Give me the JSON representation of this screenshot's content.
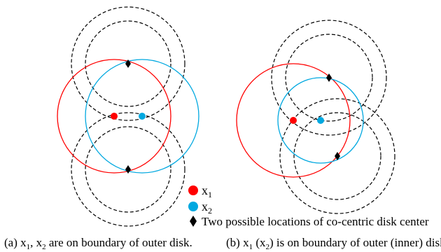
{
  "colors": {
    "x1": "#ff0000",
    "x2": "#00a8e0",
    "dashed": "#000000",
    "diamond": "#000000"
  },
  "legend": {
    "x1_base": "x",
    "x1_sub": "1",
    "x2_base": "x",
    "x2_sub": "2",
    "diamond_text": "Two possible locations of co-centric disk center"
  },
  "captions": {
    "a_prefix": "(a) x",
    "a_sub1": "1",
    "a_mid": ", x",
    "a_sub2": "2",
    "a_suffix": " are on boundary of outer disk.",
    "b_prefix": "(b) x",
    "b_sub1": "1",
    "b_mid": " (x",
    "b_sub2": "2",
    "b_suffix": ") is on boundary of outer (inner) disk."
  }
}
